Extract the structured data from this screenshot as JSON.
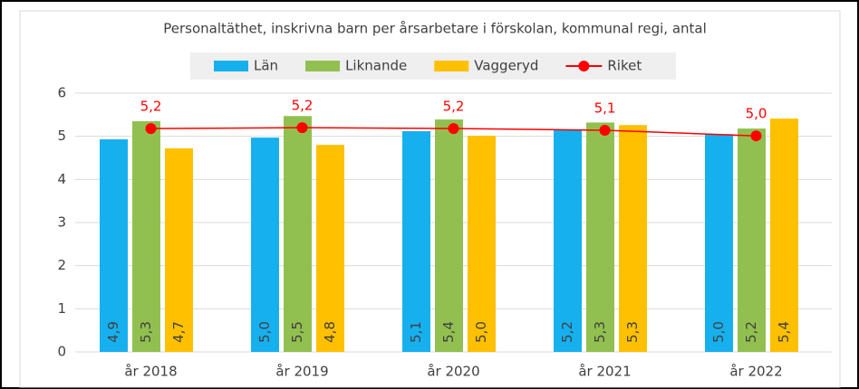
{
  "chart_data": {
    "type": "bar-line",
    "title": "Personaltäthet, inskrivna barn per årsarbetare i förskolan, kommunal regi, antal",
    "categories": [
      "år 2018",
      "år 2019",
      "år 2020",
      "år 2021",
      "år 2022"
    ],
    "ylim": [
      0,
      6
    ],
    "yticks": [
      0,
      1,
      2,
      3,
      4,
      5,
      6
    ],
    "grid": true,
    "legend": "top",
    "series": [
      {
        "name": "Län",
        "type": "bar",
        "color": "#17b0ef",
        "values": [
          4.93,
          4.97,
          5.12,
          5.16,
          5.05
        ],
        "value_labels": [
          "4,9",
          "5,0",
          "5,1",
          "5,2",
          "5,0"
        ]
      },
      {
        "name": "Liknande",
        "type": "bar",
        "color": "#92c050",
        "values": [
          5.35,
          5.47,
          5.39,
          5.32,
          5.18
        ],
        "value_labels": [
          "5,3",
          "5,5",
          "5,4",
          "5,3",
          "5,2"
        ]
      },
      {
        "name": "Vaggeryd",
        "type": "bar",
        "color": "#ffc000",
        "values": [
          4.72,
          4.8,
          5.01,
          5.26,
          5.41
        ],
        "value_labels": [
          "4,7",
          "4,8",
          "5,0",
          "5,3",
          "5,4"
        ]
      },
      {
        "name": "Riket",
        "type": "line",
        "color": "#ff0000",
        "values": [
          5.18,
          5.2,
          5.18,
          5.14,
          5.01
        ],
        "value_labels": [
          "5,2",
          "5,2",
          "5,2",
          "5,1",
          "5,0"
        ]
      }
    ]
  }
}
